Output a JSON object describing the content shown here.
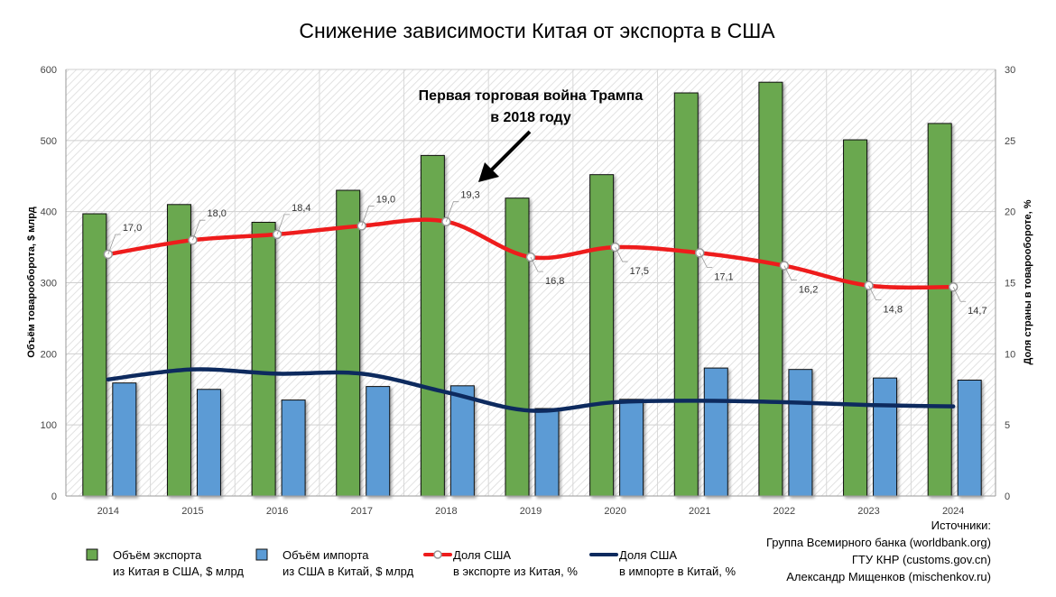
{
  "chart_data": {
    "type": "bar",
    "title": "Снижение зависимости Китая от экспорта в США",
    "categories": [
      "2014",
      "2015",
      "2016",
      "2017",
      "2018",
      "2019",
      "2020",
      "2021",
      "2022",
      "2023",
      "2024"
    ],
    "y_left": {
      "label": "Объём товарооборота, $ млрд",
      "lim": [
        0,
        600
      ],
      "ticks": [
        0,
        100,
        200,
        300,
        400,
        500,
        600
      ]
    },
    "y_right": {
      "label": "Доля страны в товарообороте, %",
      "lim": [
        0,
        30
      ],
      "ticks": [
        0,
        5,
        10,
        15,
        20,
        25,
        30
      ]
    },
    "series": [
      {
        "name": "Объём экспорта\nиз Китая в США, $ млрд",
        "type": "bar",
        "axis": "left",
        "color": "#6aa84f",
        "values": [
          397,
          410,
          385,
          430,
          479,
          419,
          452,
          567,
          582,
          501,
          524
        ]
      },
      {
        "name": "Объём импорта\nиз США в Китай, $ млрд",
        "type": "bar",
        "axis": "left",
        "color": "#5b9bd5",
        "values": [
          159,
          150,
          135,
          154,
          155,
          123,
          136,
          180,
          178,
          166,
          163
        ]
      },
      {
        "name": "Доля США\nв экспорте из Китая, %",
        "type": "line",
        "axis": "right",
        "color": "#ee1c1c",
        "values": [
          17.0,
          18.0,
          18.4,
          19.0,
          19.3,
          16.8,
          17.5,
          17.1,
          16.2,
          14.8,
          14.7
        ],
        "labels": [
          "17,0",
          "18,0",
          "18,4",
          "19,0",
          "19,3",
          "16,8",
          "17,5",
          "17,1",
          "16,2",
          "14,8",
          "14,7"
        ]
      },
      {
        "name": "Доля США\nв импорте в Китай, %",
        "type": "line",
        "axis": "right",
        "color": "#0d2a5e",
        "values": [
          8.2,
          8.9,
          8.6,
          8.6,
          7.3,
          6.0,
          6.6,
          6.7,
          6.6,
          6.4,
          6.3
        ]
      }
    ],
    "annotation": "Первая торговая война Трампа\nв 2018 году",
    "sources": [
      "Источники:",
      "Группа Всемирного банка (worldbank.org)",
      "ГТУ КНР (customs.gov.cn)",
      "Александр Мищенков (mischenkov.ru)"
    ],
    "grid": true,
    "legend_position": "bottom"
  }
}
